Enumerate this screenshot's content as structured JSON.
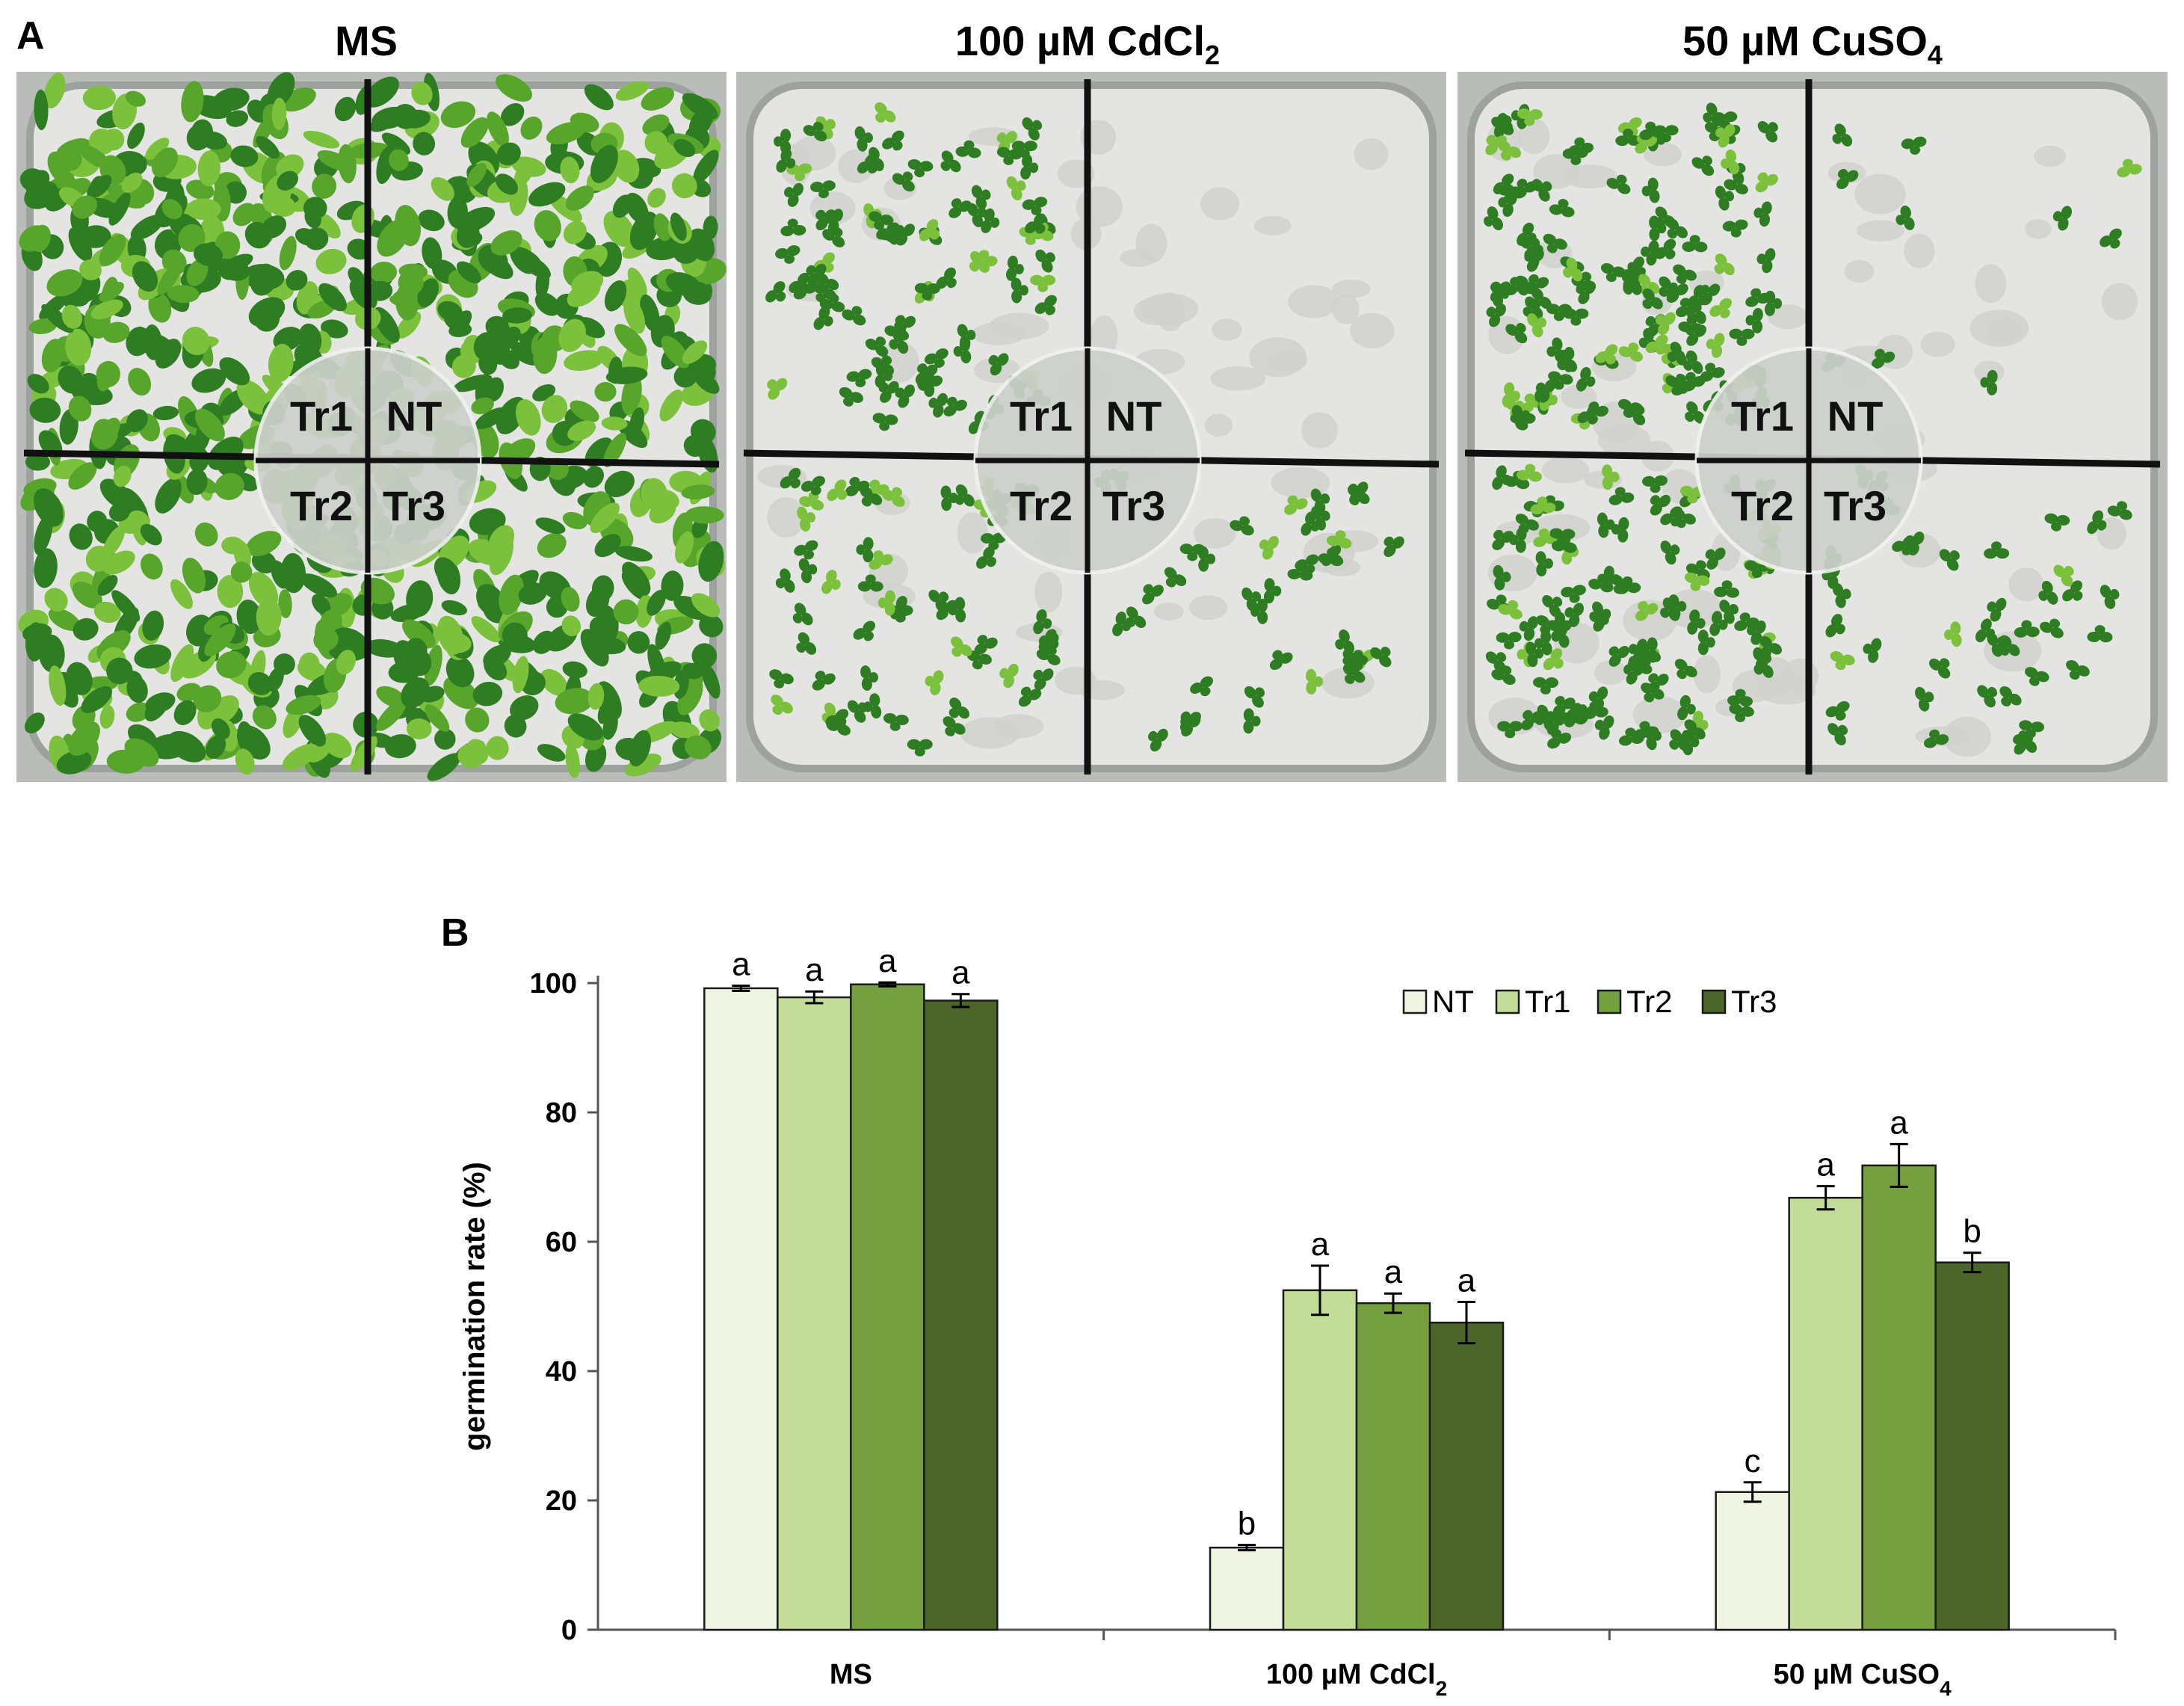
{
  "panel_a": {
    "letter": "A",
    "plates": [
      {
        "title_main": "MS",
        "title_sub": "",
        "title_tail": "",
        "theme": "dense"
      },
      {
        "title_main": "100 µM CdCl",
        "title_sub": "2",
        "title_tail": "",
        "theme": "sparse"
      },
      {
        "title_main": "50 µM CuSO",
        "title_sub": "4",
        "title_tail": "",
        "theme": "medium"
      }
    ],
    "quadrant_labels": {
      "top_left": "Tr1",
      "top_right": "NT",
      "bottom_left": "Tr2",
      "bottom_right": "Tr3"
    },
    "colors": {
      "leaf_dark": "#2f7d22",
      "leaf_light": "#7cc13c",
      "agar": "#e4e4e2"
    }
  },
  "panel_b": {
    "letter": "B"
  },
  "chart_data": {
    "type": "bar",
    "title": "",
    "xlabel": "",
    "ylabel": "germination rate (%)",
    "ylim": [
      0,
      100
    ],
    "yticks": [
      0,
      20,
      40,
      60,
      80,
      100
    ],
    "grid": false,
    "legend_position": "top-right",
    "categories": [
      {
        "main": "MS",
        "sub": ""
      },
      {
        "main": "100 µM CdCl",
        "sub": "2"
      },
      {
        "main": "50 µM CuSO",
        "sub": "4"
      }
    ],
    "series": [
      {
        "name": "NT",
        "color": "#eef3e2",
        "values": [
          99.2,
          12.7,
          21.3
        ],
        "errors": [
          0.4,
          0.4,
          1.5
        ],
        "letters": [
          "a",
          "b",
          "c"
        ]
      },
      {
        "name": "Tr1",
        "color": "#c3dc98",
        "values": [
          97.8,
          52.5,
          66.8
        ],
        "errors": [
          0.9,
          3.8,
          1.8
        ],
        "letters": [
          "a",
          "a",
          "a"
        ]
      },
      {
        "name": "Tr2",
        "color": "#769f3f",
        "values": [
          99.8,
          50.5,
          71.8
        ],
        "errors": [
          0.3,
          1.5,
          3.3
        ],
        "letters": [
          "a",
          "a",
          "a"
        ]
      },
      {
        "name": "Tr3",
        "color": "#4b6628",
        "values": [
          97.3,
          47.5,
          56.8
        ],
        "errors": [
          1.0,
          3.2,
          1.5
        ],
        "letters": [
          "a",
          "a",
          "b"
        ]
      }
    ]
  }
}
